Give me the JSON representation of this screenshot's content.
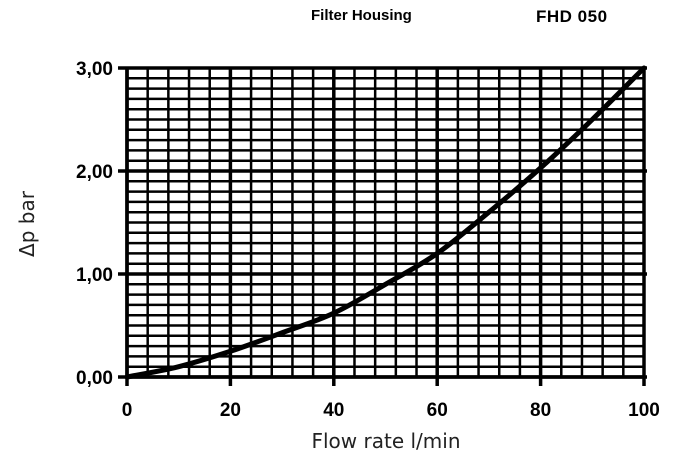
{
  "header": {
    "title": "Filter Housing",
    "model": "FHD 050"
  },
  "chart_data": {
    "type": "line",
    "title": "Filter Housing",
    "subtitle": "FHD 050",
    "xlabel": "Flow rate l/min",
    "ylabel": "Δp bar",
    "xlim": [
      0,
      100
    ],
    "ylim": [
      0,
      3
    ],
    "x_ticks": [
      0,
      20,
      40,
      60,
      80,
      100
    ],
    "x_tick_labels": [
      "0",
      "20",
      "40",
      "60",
      "80",
      "100"
    ],
    "y_ticks": [
      0,
      1,
      2,
      3
    ],
    "y_tick_labels": [
      "0,00",
      "1,00",
      "2,00",
      "3,00"
    ],
    "grid": true,
    "legend": "none",
    "series": [
      {
        "x": [
          0,
          10,
          20,
          30,
          40,
          50,
          60,
          70,
          80,
          90,
          100
        ],
        "y": [
          0,
          0.1,
          0.25,
          0.43,
          0.62,
          0.9,
          1.2,
          1.6,
          2.03,
          2.5,
          3.0
        ]
      }
    ]
  }
}
